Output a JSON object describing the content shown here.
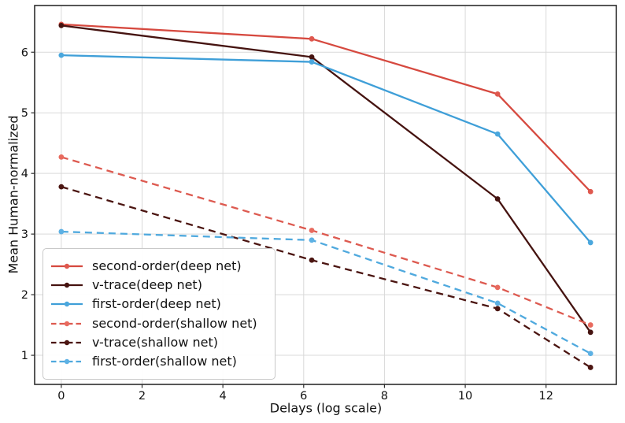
{
  "figure": {
    "background": "#ffffff",
    "grid_color": "#d9d9d9",
    "spine_color": "#2d2d2d",
    "tick_color": "#2d2d2d",
    "text_color": "#111111"
  },
  "chart_data": {
    "type": "line",
    "title": "",
    "xlabel": "Delays (log scale)",
    "ylabel": "Mean Human-normalized",
    "xlim": [
      -0.66,
      13.74
    ],
    "ylim": [
      0.52,
      6.77
    ],
    "xticks": [
      0,
      2,
      4,
      6,
      8,
      10,
      12
    ],
    "xtick_labels": [
      "0",
      "2",
      "4",
      "6",
      "8",
      "10",
      "12"
    ],
    "yticks": [
      1,
      2,
      3,
      4,
      5,
      6
    ],
    "ytick_labels": [
      "1",
      "2",
      "3",
      "4",
      "5",
      "6"
    ],
    "grid": true,
    "legend_position": "lower left",
    "x": [
      0,
      6.2,
      10.8,
      13.1
    ],
    "series": [
      {
        "name": "second-order(deep net)",
        "style": "solid",
        "color": "#d6493f",
        "marker_color": "#df584e",
        "values": [
          6.46,
          6.22,
          5.31,
          3.7
        ]
      },
      {
        "name": "v-trace(deep net)",
        "style": "solid",
        "color": "#451310",
        "marker_color": "#451310",
        "values": [
          6.44,
          5.92,
          3.58,
          1.38
        ]
      },
      {
        "name": "first-order(deep net)",
        "style": "solid",
        "color": "#3f9fd8",
        "marker_color": "#4aa7dd",
        "values": [
          5.95,
          5.84,
          4.65,
          2.86
        ]
      },
      {
        "name": "second-order(shallow net)",
        "style": "dashed",
        "color": "#dd5a50",
        "marker_color": "#e86a5e",
        "values": [
          4.27,
          3.06,
          2.12,
          1.5
        ]
      },
      {
        "name": "v-trace(shallow net)",
        "style": "dashed",
        "color": "#4b1511",
        "marker_color": "#4b1511",
        "values": [
          3.78,
          2.57,
          1.77,
          0.8
        ]
      },
      {
        "name": "first-order(shallow net)",
        "style": "dashed",
        "color": "#4fa9de",
        "marker_color": "#5db1e4",
        "values": [
          3.04,
          2.9,
          1.86,
          1.03
        ]
      }
    ]
  }
}
